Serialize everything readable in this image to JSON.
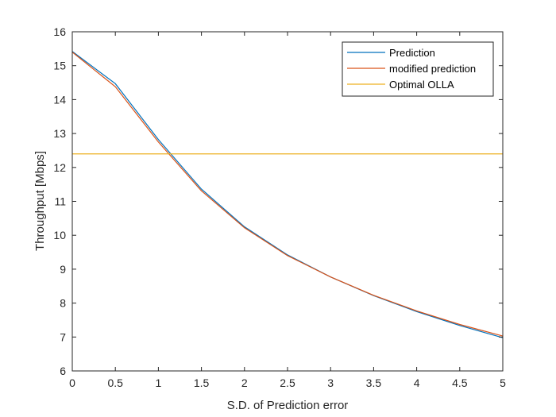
{
  "chart_data": {
    "type": "line",
    "title": "",
    "xlabel": "S.D. of Prediction error",
    "ylabel": "Throughput [Mbps]",
    "xlim": [
      0,
      5
    ],
    "ylim": [
      6,
      16
    ],
    "xticks": [
      "0",
      "0.5",
      "1",
      "1.5",
      "2",
      "2.5",
      "3",
      "3.5",
      "4",
      "4.5",
      "5"
    ],
    "yticks": [
      "6",
      "7",
      "8",
      "9",
      "10",
      "11",
      "12",
      "13",
      "14",
      "15",
      "16"
    ],
    "grid": false,
    "legend_position": "top-right",
    "x": [
      0,
      0.5,
      1,
      1.5,
      2,
      2.5,
      3,
      3.5,
      4,
      4.5,
      5
    ],
    "series": [
      {
        "name": "Prediction",
        "color": "#0072BD",
        "values": [
          15.42,
          14.47,
          12.82,
          11.36,
          10.25,
          9.42,
          8.77,
          8.22,
          7.75,
          7.34,
          6.98
        ]
      },
      {
        "name": "modified prediction",
        "color": "#D95319",
        "values": [
          15.4,
          14.38,
          12.75,
          11.31,
          10.22,
          9.4,
          8.77,
          8.23,
          7.77,
          7.37,
          7.03
        ]
      },
      {
        "name": "Optimal OLLA",
        "color": "#EDB120",
        "values": [
          12.4,
          12.4,
          12.4,
          12.4,
          12.4,
          12.4,
          12.4,
          12.4,
          12.4,
          12.4,
          12.4
        ]
      }
    ]
  }
}
